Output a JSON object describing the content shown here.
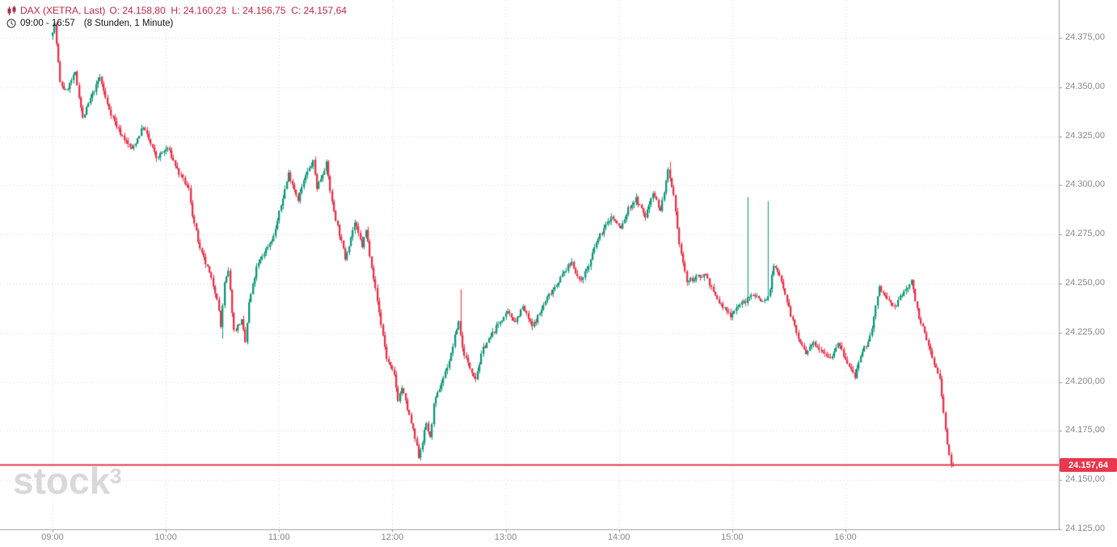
{
  "header": {
    "symbol": "DAX (XETRA, Last)",
    "ohlc_text": "O: 24.158,80  H: 24.160,23  L: 24.156,75  C: 24.157,64",
    "session": "09:00 - 16:57",
    "interval": "(8 Stunden, 1 Minute)"
  },
  "watermark": {
    "brand": "stock",
    "sup": "3"
  },
  "axis": {
    "y_ticks": [
      "24.375,00",
      "24.350,00",
      "24.325,00",
      "24.300,00",
      "24.275,00",
      "24.250,00",
      "24.225,00",
      "24.200,00",
      "24.175,00",
      "24.150,00",
      "24.125,00"
    ],
    "x_ticks": [
      "09:00",
      "10:00",
      "11:00",
      "12:00",
      "13:00",
      "14:00",
      "15:00",
      "16:00"
    ]
  },
  "last_price": {
    "label": "24.157,64",
    "value": 24157.64
  },
  "colors": {
    "up": "#159b7d",
    "down": "#e8384e",
    "last_price_line": "#e8384e",
    "header_text": "#c22f4c",
    "axis_text": "#8a8a8a",
    "axis_line": "#a0a0a0",
    "grid": "#d7d7d7",
    "watermark": "#d9d9d9"
  },
  "chart_data": {
    "type": "candlestick",
    "title": "DAX (XETRA, Last)",
    "symbol": "DAX",
    "exchange": "XETRA",
    "interval_minutes": 1,
    "session_start": "09:00",
    "session_end": "16:57",
    "session_length": "8 Stunden",
    "last_candle_ohlc": {
      "open": 24158.8,
      "high": 24160.23,
      "low": 24156.75,
      "close": 24157.64
    },
    "y_axis": {
      "min": 24125,
      "max": 24375,
      "step": 25
    },
    "x_ticks_minutes": [
      0,
      60,
      120,
      180,
      240,
      300,
      360,
      420
    ],
    "total_minutes": 477,
    "price_anchors": [
      [
        0,
        24376
      ],
      [
        2,
        24382
      ],
      [
        5,
        24352
      ],
      [
        8,
        24348
      ],
      [
        13,
        24357
      ],
      [
        17,
        24334
      ],
      [
        21,
        24344
      ],
      [
        26,
        24355
      ],
      [
        30,
        24341
      ],
      [
        36,
        24328
      ],
      [
        43,
        24318
      ],
      [
        49,
        24330
      ],
      [
        56,
        24314
      ],
      [
        62,
        24319
      ],
      [
        68,
        24306
      ],
      [
        73,
        24298
      ],
      [
        75,
        24285
      ],
      [
        79,
        24267
      ],
      [
        83,
        24258
      ],
      [
        88,
        24243
      ],
      [
        90,
        24228
      ],
      [
        92,
        24250
      ],
      [
        94,
        24256
      ],
      [
        97,
        24226
      ],
      [
        101,
        24231
      ],
      [
        103,
        24220
      ],
      [
        105,
        24240
      ],
      [
        109,
        24258
      ],
      [
        113,
        24266
      ],
      [
        118,
        24274
      ],
      [
        122,
        24290
      ],
      [
        126,
        24306
      ],
      [
        131,
        24293
      ],
      [
        135,
        24305
      ],
      [
        139,
        24312
      ],
      [
        141,
        24299
      ],
      [
        146,
        24311
      ],
      [
        149,
        24291
      ],
      [
        152,
        24279
      ],
      [
        156,
        24263
      ],
      [
        161,
        24281
      ],
      [
        165,
        24269
      ],
      [
        167,
        24277
      ],
      [
        170,
        24259
      ],
      [
        173,
        24241
      ],
      [
        178,
        24212
      ],
      [
        182,
        24203
      ],
      [
        184,
        24191
      ],
      [
        186,
        24197
      ],
      [
        189,
        24186
      ],
      [
        191,
        24179
      ],
      [
        193,
        24171
      ],
      [
        195,
        24162
      ],
      [
        197,
        24170
      ],
      [
        199,
        24179
      ],
      [
        201,
        24171
      ],
      [
        203,
        24188
      ],
      [
        206,
        24197
      ],
      [
        209,
        24205
      ],
      [
        212,
        24214
      ],
      [
        214,
        24223
      ],
      [
        216,
        24231
      ],
      [
        218,
        24217
      ],
      [
        221,
        24209
      ],
      [
        225,
        24202
      ],
      [
        229,
        24217
      ],
      [
        233,
        24223
      ],
      [
        238,
        24231
      ],
      [
        242,
        24235
      ],
      [
        246,
        24231
      ],
      [
        250,
        24238
      ],
      [
        255,
        24228
      ],
      [
        259,
        24235
      ],
      [
        263,
        24243
      ],
      [
        268,
        24250
      ],
      [
        272,
        24256
      ],
      [
        276,
        24261
      ],
      [
        280,
        24251
      ],
      [
        285,
        24259
      ],
      [
        289,
        24271
      ],
      [
        293,
        24278
      ],
      [
        297,
        24284
      ],
      [
        302,
        24278
      ],
      [
        306,
        24288
      ],
      [
        310,
        24293
      ],
      [
        315,
        24284
      ],
      [
        319,
        24297
      ],
      [
        323,
        24287
      ],
      [
        327,
        24307
      ],
      [
        330,
        24294
      ],
      [
        332,
        24277
      ],
      [
        334,
        24265
      ],
      [
        337,
        24251
      ],
      [
        342,
        24253
      ],
      [
        347,
        24255
      ],
      [
        351,
        24245
      ],
      [
        355,
        24239
      ],
      [
        360,
        24234
      ],
      [
        364,
        24239
      ],
      [
        368,
        24241
      ],
      [
        372,
        24245
      ],
      [
        377,
        24241
      ],
      [
        380,
        24243
      ],
      [
        383,
        24259
      ],
      [
        387,
        24252
      ],
      [
        392,
        24234
      ],
      [
        396,
        24222
      ],
      [
        400,
        24214
      ],
      [
        404,
        24220
      ],
      [
        409,
        24216
      ],
      [
        413,
        24212
      ],
      [
        417,
        24220
      ],
      [
        422,
        24209
      ],
      [
        426,
        24203
      ],
      [
        430,
        24215
      ],
      [
        434,
        24223
      ],
      [
        439,
        24248
      ],
      [
        443,
        24242
      ],
      [
        447,
        24238
      ],
      [
        452,
        24246
      ],
      [
        456,
        24251
      ],
      [
        460,
        24233
      ],
      [
        464,
        24221
      ],
      [
        469,
        24207
      ],
      [
        471,
        24201
      ],
      [
        473,
        24184
      ],
      [
        475,
        24168
      ],
      [
        477,
        24157.6
      ]
    ],
    "wick_spikes": [
      {
        "minute": 90,
        "type": "low",
        "price": 24222
      },
      {
        "minute": 195,
        "type": "low",
        "price": 24160
      },
      {
        "minute": 216,
        "type": "high",
        "price": 24247
      },
      {
        "minute": 327,
        "type": "high",
        "price": 24312
      },
      {
        "minute": 368,
        "type": "high",
        "price": 24294
      },
      {
        "minute": 379,
        "type": "high",
        "price": 24292
      },
      {
        "minute": 477,
        "type": "low",
        "price": 24156.75
      }
    ]
  }
}
